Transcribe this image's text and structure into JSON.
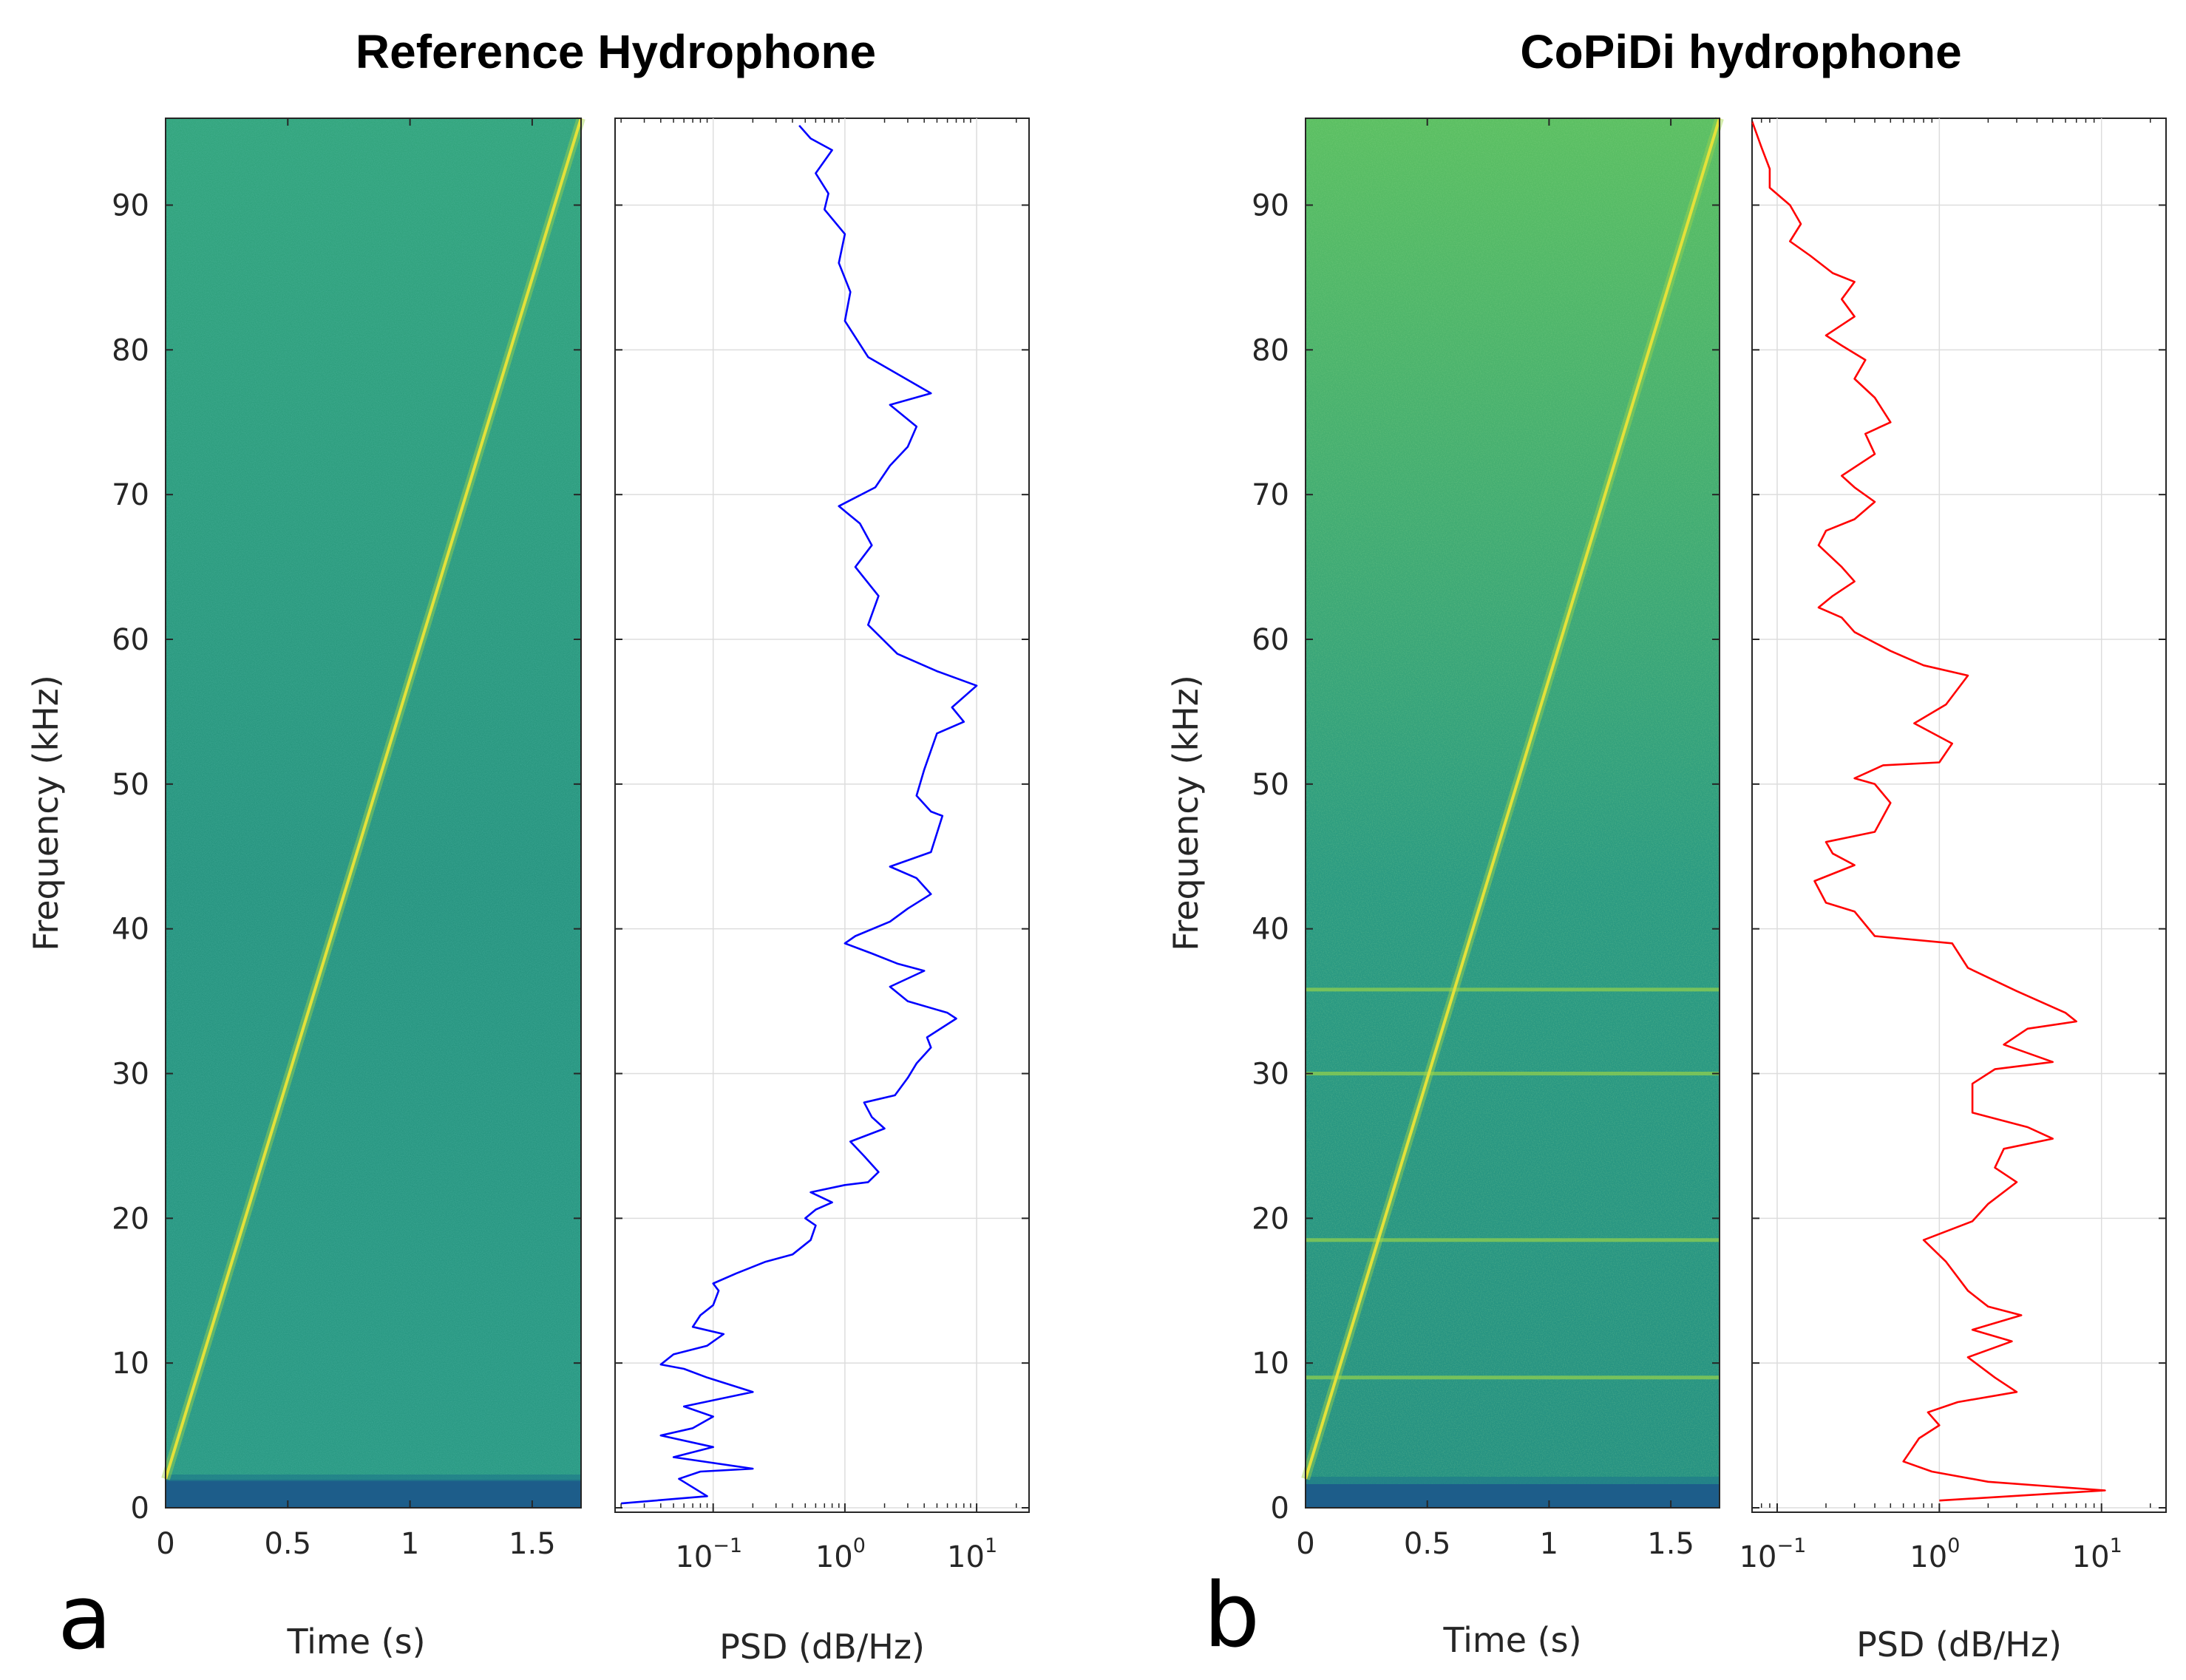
{
  "panels": [
    {
      "letter": "a",
      "title": "Reference Hydrophone",
      "line_color": "#0000ff",
      "tone_line_khz": []
    },
    {
      "letter": "b",
      "title": "CoPiDi hydrophone",
      "line_color": "#ff0000",
      "tone_line_khz": [
        9,
        18.5,
        30,
        35.8
      ]
    }
  ],
  "labels": {
    "ylabel": "Frequency (kHz)",
    "spec_xlabel": "Time (s)",
    "psd_xlabel": "PSD (dB/Hz)"
  },
  "ticks": {
    "frequency": [
      "0",
      "10",
      "20",
      "30",
      "40",
      "50",
      "60",
      "70",
      "80",
      "90"
    ],
    "time": [
      "0",
      "0.5",
      "1",
      "1.5"
    ],
    "psd_base": "10",
    "psd_exponents": [
      "−1",
      "0",
      "1"
    ]
  },
  "colors": {
    "spectrogram_background": "#2e9e86",
    "spectrogram_low_band": "#1d5d8a",
    "chirp": "#e4e13a",
    "grid": "#dddddd"
  },
  "chart_data": [
    {
      "type": "heatmap",
      "title": "Reference Hydrophone",
      "xlabel": "Time (s)",
      "ylabel": "Frequency (kHz)",
      "xlim": [
        0,
        1.7
      ],
      "ylim": [
        0,
        96
      ],
      "xticks": [
        0,
        0.5,
        1,
        1.5
      ],
      "yticks": [
        0,
        10,
        20,
        30,
        40,
        50,
        60,
        70,
        80,
        90
      ],
      "chirp": {
        "t_start": 0,
        "f_start_khz": 2,
        "t_end": 1.7,
        "f_end_khz": 96
      }
    },
    {
      "type": "line",
      "xlabel": "PSD (dB/Hz)",
      "xscale": "log",
      "xlim": [
        0.018,
        25
      ],
      "ylim": [
        0,
        96
      ],
      "grid": true,
      "series": [
        {
          "color": "#0000ff",
          "points": [
            [
              0.02,
              0.3
            ],
            [
              0.09,
              0.8
            ],
            [
              0.055,
              2
            ],
            [
              0.08,
              2.5
            ],
            [
              0.2,
              2.7
            ],
            [
              0.05,
              3.5
            ],
            [
              0.1,
              4.2
            ],
            [
              0.04,
              5
            ],
            [
              0.07,
              5.5
            ],
            [
              0.1,
              6.3
            ],
            [
              0.06,
              7
            ],
            [
              0.2,
              8
            ],
            [
              0.09,
              9
            ],
            [
              0.06,
              9.6
            ],
            [
              0.04,
              9.9
            ],
            [
              0.05,
              10.6
            ],
            [
              0.09,
              11.2
            ],
            [
              0.12,
              12
            ],
            [
              0.07,
              12.5
            ],
            [
              0.08,
              13.3
            ],
            [
              0.1,
              14
            ],
            [
              0.11,
              15
            ],
            [
              0.1,
              15.5
            ],
            [
              0.15,
              16.2
            ],
            [
              0.25,
              17
            ],
            [
              0.4,
              17.5
            ],
            [
              0.55,
              18.5
            ],
            [
              0.6,
              19.5
            ],
            [
              0.5,
              20
            ],
            [
              0.6,
              20.6
            ],
            [
              0.8,
              21.1
            ],
            [
              0.55,
              21.8
            ],
            [
              1.0,
              22.3
            ],
            [
              1.5,
              22.5
            ],
            [
              1.8,
              23.2
            ],
            [
              1.4,
              24.3
            ],
            [
              1.1,
              25.3
            ],
            [
              2.0,
              26.2
            ],
            [
              1.6,
              27
            ],
            [
              1.4,
              28
            ],
            [
              2.4,
              28.5
            ],
            [
              3.0,
              29.7
            ],
            [
              3.5,
              30.7
            ],
            [
              4.5,
              31.8
            ],
            [
              4.2,
              32.5
            ],
            [
              7.0,
              33.8
            ],
            [
              6.0,
              34.2
            ],
            [
              3.0,
              35
            ],
            [
              2.2,
              36
            ],
            [
              4.0,
              37.1
            ],
            [
              2.5,
              37.6
            ],
            [
              1.6,
              38.3
            ],
            [
              1.0,
              39
            ],
            [
              1.2,
              39.5
            ],
            [
              2.2,
              40.5
            ],
            [
              3.0,
              41.4
            ],
            [
              4.5,
              42.4
            ],
            [
              3.5,
              43.5
            ],
            [
              2.2,
              44.3
            ],
            [
              4.5,
              45.3
            ],
            [
              5.5,
              47.8
            ],
            [
              4.5,
              48.1
            ],
            [
              3.5,
              49.2
            ],
            [
              4.0,
              51
            ],
            [
              5.0,
              53.5
            ],
            [
              8.0,
              54.3
            ],
            [
              6.5,
              55.3
            ],
            [
              10.0,
              56.8
            ],
            [
              5.0,
              57.8
            ],
            [
              2.5,
              59
            ],
            [
              1.5,
              61
            ],
            [
              1.8,
              63
            ],
            [
              1.2,
              65
            ],
            [
              1.6,
              66.5
            ],
            [
              1.3,
              68
            ],
            [
              0.9,
              69.2
            ],
            [
              1.7,
              70.5
            ],
            [
              2.2,
              72
            ],
            [
              3.0,
              73.3
            ],
            [
              3.5,
              74.7
            ],
            [
              2.2,
              76.2
            ],
            [
              4.5,
              77
            ],
            [
              1.5,
              79.5
            ],
            [
              1.0,
              82
            ],
            [
              1.1,
              84
            ],
            [
              0.9,
              86
            ],
            [
              1.0,
              88
            ],
            [
              0.7,
              89.7
            ],
            [
              0.75,
              90.8
            ],
            [
              0.6,
              92.2
            ],
            [
              0.8,
              93.8
            ],
            [
              0.55,
              94.6
            ],
            [
              0.45,
              95.5
            ]
          ]
        }
      ]
    },
    {
      "type": "heatmap",
      "title": "CoPiDi hydrophone",
      "xlabel": "Time (s)",
      "ylabel": "Frequency (kHz)",
      "xlim": [
        0,
        1.7
      ],
      "ylim": [
        0,
        96
      ],
      "xticks": [
        0,
        0.5,
        1,
        1.5
      ],
      "yticks": [
        0,
        10,
        20,
        30,
        40,
        50,
        60,
        70,
        80,
        90
      ],
      "chirp": {
        "t_start": 0,
        "f_start_khz": 2,
        "t_end": 1.7,
        "f_end_khz": 96
      },
      "tone_lines_khz": [
        9,
        18.5,
        30,
        35.8
      ]
    },
    {
      "type": "line",
      "xlabel": "PSD (dB/Hz)",
      "xscale": "log",
      "xlim": [
        0.07,
        25
      ],
      "ylim": [
        0,
        96
      ],
      "grid": true,
      "series": [
        {
          "color": "#ff0000",
          "points": [
            [
              1.0,
              0.5
            ],
            [
              10.5,
              1.2
            ],
            [
              2.0,
              1.8
            ],
            [
              0.9,
              2.5
            ],
            [
              0.6,
              3.2
            ],
            [
              0.75,
              4.8
            ],
            [
              1.0,
              5.7
            ],
            [
              0.85,
              6.6
            ],
            [
              1.3,
              7.3
            ],
            [
              3.0,
              8
            ],
            [
              2.2,
              9
            ],
            [
              1.5,
              10.4
            ],
            [
              2.8,
              11.5
            ],
            [
              1.6,
              12.3
            ],
            [
              3.2,
              13.3
            ],
            [
              2.0,
              13.9
            ],
            [
              1.5,
              15
            ],
            [
              1.1,
              17
            ],
            [
              0.8,
              18.5
            ],
            [
              1.6,
              19.8
            ],
            [
              2.0,
              21
            ],
            [
              3.0,
              22.5
            ],
            [
              2.2,
              23.5
            ],
            [
              2.5,
              24.8
            ],
            [
              5.0,
              25.5
            ],
            [
              3.5,
              26.3
            ],
            [
              1.6,
              27.3
            ],
            [
              1.6,
              29.3
            ],
            [
              2.2,
              30.3
            ],
            [
              5.0,
              30.8
            ],
            [
              2.5,
              32
            ],
            [
              3.5,
              33.1
            ],
            [
              7.0,
              33.6
            ],
            [
              6.0,
              34.2
            ],
            [
              3.0,
              35.7
            ],
            [
              1.5,
              37.3
            ],
            [
              1.2,
              39
            ],
            [
              0.4,
              39.5
            ],
            [
              0.3,
              41.2
            ],
            [
              0.2,
              41.8
            ],
            [
              0.17,
              43.3
            ],
            [
              0.3,
              44.4
            ],
            [
              0.22,
              45.2
            ],
            [
              0.2,
              46
            ],
            [
              0.4,
              46.7
            ],
            [
              0.5,
              48.7
            ],
            [
              0.4,
              50
            ],
            [
              0.3,
              50.4
            ],
            [
              0.45,
              51.3
            ],
            [
              1.0,
              51.5
            ],
            [
              1.2,
              52.8
            ],
            [
              0.7,
              54.2
            ],
            [
              1.1,
              55.5
            ],
            [
              1.5,
              57.5
            ],
            [
              0.8,
              58.2
            ],
            [
              0.5,
              59.2
            ],
            [
              0.3,
              60.5
            ],
            [
              0.25,
              61.5
            ],
            [
              0.18,
              62.2
            ],
            [
              0.22,
              63
            ],
            [
              0.3,
              64
            ],
            [
              0.25,
              65
            ],
            [
              0.18,
              66.5
            ],
            [
              0.2,
              67.5
            ],
            [
              0.3,
              68.3
            ],
            [
              0.4,
              69.5
            ],
            [
              0.3,
              70.5
            ],
            [
              0.25,
              71.3
            ],
            [
              0.4,
              72.8
            ],
            [
              0.35,
              74.2
            ],
            [
              0.5,
              75
            ],
            [
              0.4,
              76.7
            ],
            [
              0.3,
              78
            ],
            [
              0.35,
              79.3
            ],
            [
              0.25,
              80.3
            ],
            [
              0.2,
              81
            ],
            [
              0.3,
              82.3
            ],
            [
              0.25,
              83.5
            ],
            [
              0.3,
              84.7
            ],
            [
              0.22,
              85.3
            ],
            [
              0.16,
              86.5
            ],
            [
              0.12,
              87.5
            ],
            [
              0.14,
              88.7
            ],
            [
              0.12,
              90
            ],
            [
              0.09,
              91.2
            ],
            [
              0.09,
              92.5
            ],
            [
              0.08,
              94
            ],
            [
              0.07,
              95.8
            ]
          ]
        }
      ]
    }
  ]
}
